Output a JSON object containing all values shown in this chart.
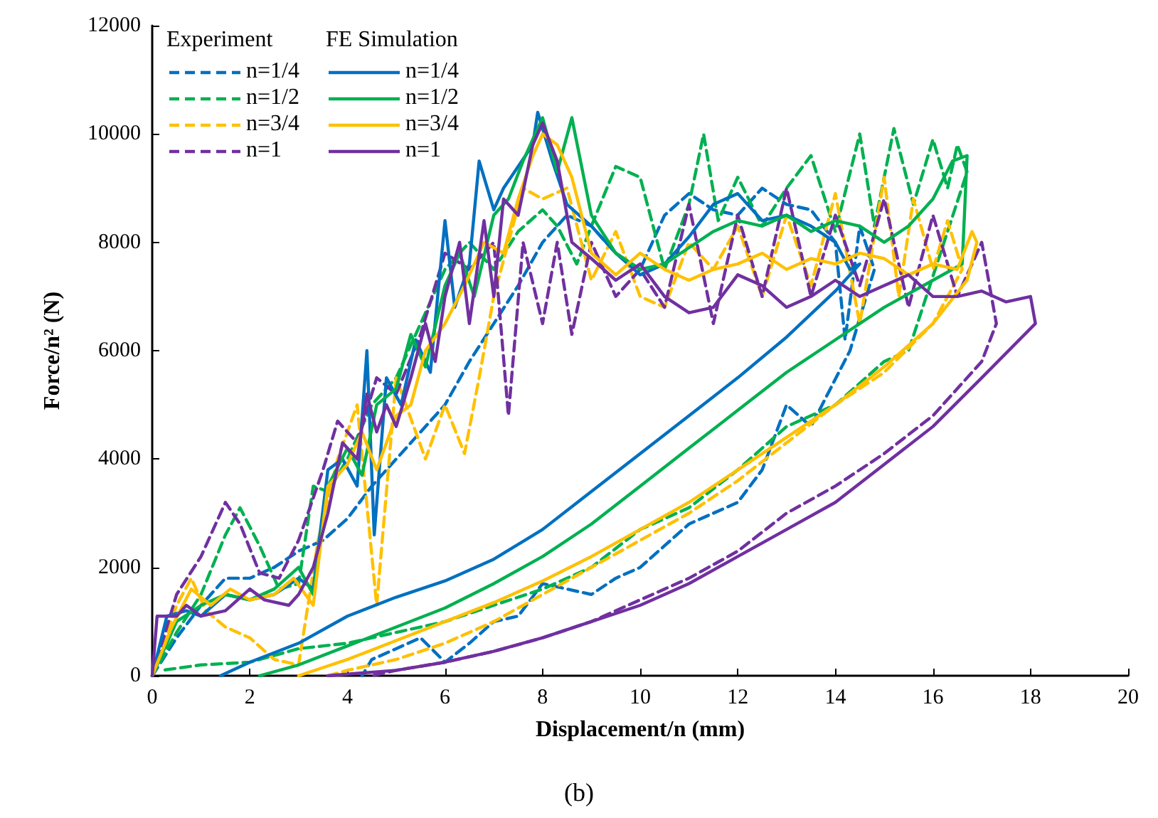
{
  "chart_data": {
    "type": "line",
    "xlabel": "Displacement/n (mm)",
    "ylabel": "Force/n² (N)",
    "annotations": [
      "Experiment",
      "FE Simulation",
      "(b)"
    ],
    "xlim": [
      0,
      20
    ],
    "xticks": [
      0,
      2,
      4,
      6,
      8,
      10,
      12,
      14,
      16,
      18,
      20
    ],
    "ylim": [
      0,
      12000
    ],
    "yticks": [
      0,
      2000,
      4000,
      6000,
      8000,
      10000,
      12000
    ],
    "grid": false,
    "legend": "top left",
    "marker": "none",
    "series": [
      {
        "name": "n=1/4",
        "color": "#0070c0",
        "line_style": "dashed",
        "x": [
          0,
          0.5,
          1,
          1.5,
          2,
          2.5,
          3,
          3.5,
          4,
          4.5,
          5,
          5.5,
          6,
          6.5,
          7,
          7.5,
          8,
          8.5,
          9,
          9.5,
          10,
          10.5,
          11,
          11.5,
          12,
          12.5,
          13,
          13.5,
          14,
          14.2,
          14.5,
          14.8,
          14.3,
          13.5,
          13,
          12.5,
          12,
          11,
          10.5,
          10,
          9.5,
          9,
          8,
          7.5,
          7,
          6.5,
          6,
          5.5,
          5,
          4.5,
          4.3
        ],
        "values": [
          0,
          700,
          1300,
          1800,
          1800,
          2000,
          2300,
          2500,
          2900,
          3500,
          4000,
          4500,
          5000,
          5800,
          6500,
          7200,
          8000,
          8500,
          8300,
          7800,
          7500,
          8500,
          8900,
          8600,
          8500,
          9000,
          8700,
          8600,
          8000,
          6200,
          8300,
          7500,
          6000,
          4600,
          5000,
          3800,
          3200,
          2800,
          2400,
          2000,
          1800,
          1500,
          1700,
          1100,
          1000,
          600,
          250,
          700,
          500,
          300,
          0
        ]
      },
      {
        "name": "n=1/2",
        "color": "#00b050",
        "line_style": "dashed",
        "x": [
          0,
          0.5,
          1,
          1.5,
          1.8,
          2.2,
          2.6,
          3,
          3.3,
          3.6,
          4,
          4.5,
          5,
          5.5,
          6,
          6.5,
          7,
          7.5,
          8,
          8.3,
          8.7,
          9,
          9.5,
          10,
          10.5,
          11,
          11.3,
          11.6,
          12,
          12.5,
          13,
          13.5,
          14,
          14.5,
          14.8,
          15.2,
          15.6,
          16,
          16.3,
          16.5,
          16.7,
          15.5,
          15,
          14,
          13,
          12,
          11,
          10,
          9,
          8,
          7,
          6,
          5,
          4,
          3,
          2,
          1,
          0.2
        ],
        "values": [
          0,
          800,
          1500,
          2600,
          3100,
          2400,
          1600,
          1700,
          3500,
          3400,
          4000,
          5000,
          5500,
          6500,
          7500,
          8000,
          7500,
          8200,
          8600,
          8300,
          7600,
          8300,
          9400,
          9200,
          7500,
          8700,
          10000,
          8400,
          9200,
          8300,
          9000,
          9600,
          8200,
          10000,
          8300,
          10100,
          8700,
          9900,
          9000,
          9800,
          9300,
          6000,
          5800,
          5000,
          4600,
          3800,
          3100,
          2700,
          2000,
          1600,
          1300,
          1000,
          800,
          600,
          500,
          250,
          200,
          100
        ]
      },
      {
        "name": "n=3/4",
        "color": "#ffc000",
        "line_style": "dashed",
        "x": [
          0,
          0.5,
          0.8,
          1.1,
          1.5,
          2,
          2.5,
          3,
          3.4,
          3.8,
          4.2,
          4.6,
          5,
          5.6,
          6,
          6.4,
          6.7,
          7,
          7.3,
          7.6,
          8,
          8.5,
          9,
          9.5,
          10,
          10.5,
          11,
          11.5,
          12,
          12.5,
          13,
          13.5,
          14,
          14.5,
          15,
          15.3,
          15.6,
          16,
          16.3,
          16.6,
          16,
          15,
          14,
          13,
          12,
          11,
          10,
          9,
          8,
          7,
          6,
          5,
          4,
          3.6
        ],
        "values": [
          0,
          1300,
          1800,
          1200,
          900,
          700,
          300,
          200,
          2500,
          4000,
          5000,
          1300,
          5500,
          4000,
          5000,
          4100,
          5500,
          7000,
          8000,
          9000,
          8800,
          9000,
          7300,
          8200,
          7000,
          6800,
          8000,
          7500,
          8300,
          7000,
          8500,
          7200,
          8900,
          6500,
          9200,
          7000,
          8800,
          7500,
          8400,
          7500,
          6500,
          5600,
          5000,
          4300,
          3600,
          3000,
          2500,
          2000,
          1500,
          1000,
          600,
          300,
          100,
          0
        ]
      },
      {
        "name": "n=1",
        "color": "#7030a0",
        "line_style": "dashed",
        "x": [
          0,
          0.5,
          1,
          1.5,
          1.8,
          2.2,
          2.6,
          3,
          3.5,
          3.8,
          4.2,
          4.6,
          5,
          5.5,
          6,
          6.5,
          7,
          7.3,
          7.6,
          8,
          8.3,
          8.6,
          9,
          9.5,
          10,
          10.5,
          11,
          11.5,
          12,
          12.5,
          13,
          13.5,
          14,
          14.5,
          15,
          15.5,
          16,
          16.5,
          17,
          17.3,
          17,
          16,
          15,
          14,
          13,
          12,
          11,
          10,
          9,
          8,
          7,
          6,
          5,
          4.5
        ],
        "values": [
          0,
          1500,
          2200,
          3200,
          2800,
          1900,
          1800,
          2500,
          3800,
          4700,
          4300,
          5500,
          5200,
          6300,
          7800,
          7500,
          8000,
          4800,
          8000,
          6500,
          8000,
          6300,
          8000,
          7000,
          7500,
          6800,
          8700,
          6500,
          8500,
          7000,
          9000,
          7000,
          8500,
          7200,
          8800,
          6800,
          8500,
          7000,
          8000,
          6500,
          5800,
          4800,
          4100,
          3500,
          3000,
          2300,
          1800,
          1400,
          1000,
          700,
          450,
          250,
          100,
          0
        ]
      },
      {
        "name": "n=1/4",
        "color": "#0070c0",
        "line_style": "solid",
        "x": [
          0,
          0.3,
          0.7,
          1,
          1.5,
          2,
          2.5,
          3,
          3.3,
          3.6,
          3.9,
          4.2,
          4.4,
          4.55,
          4.8,
          5.1,
          5.4,
          5.7,
          6,
          6.2,
          6.5,
          6.7,
          7,
          7.2,
          7.5,
          7.8,
          7.9,
          8.2,
          8.5,
          9,
          9.5,
          10,
          10.5,
          11,
          11.5,
          12,
          12.5,
          13,
          13.5,
          14,
          14.3,
          14.5,
          14,
          13,
          12,
          11,
          10,
          9,
          8,
          7,
          6,
          5,
          4,
          3,
          2,
          1.4
        ],
        "values": [
          0,
          1100,
          1200,
          1100,
          1500,
          1400,
          1500,
          1800,
          1600,
          3800,
          4000,
          3500,
          6000,
          2600,
          5500,
          5000,
          6200,
          5600,
          8400,
          6800,
          7600,
          9500,
          8600,
          9000,
          9400,
          9800,
          10400,
          9500,
          8700,
          8300,
          7800,
          7400,
          7600,
          8100,
          8700,
          8900,
          8400,
          8500,
          8300,
          8000,
          7500,
          7600,
          7100,
          6250,
          5500,
          4800,
          4100,
          3400,
          2700,
          2150,
          1750,
          1450,
          1100,
          600,
          250,
          0
        ]
      },
      {
        "name": "n=1/2",
        "color": "#00b050",
        "line_style": "solid",
        "x": [
          0,
          0.5,
          1,
          1.5,
          2,
          2.5,
          3,
          3.3,
          3.6,
          4,
          4.3,
          4.6,
          5,
          5.3,
          5.6,
          6,
          6.3,
          6.6,
          7,
          7.3,
          7.6,
          8,
          8.3,
          8.6,
          9,
          9.5,
          10,
          10.5,
          11,
          11.5,
          12,
          12.5,
          13,
          13.5,
          14,
          14.5,
          15,
          15.5,
          16,
          16.4,
          16.7,
          16.6,
          16,
          15,
          14,
          13,
          12,
          11,
          10,
          9,
          8,
          7,
          6,
          5,
          4,
          3,
          2.2
        ],
        "values": [
          0,
          1000,
          1300,
          1500,
          1400,
          1600,
          2000,
          1500,
          3500,
          4200,
          3700,
          5000,
          5300,
          6300,
          5700,
          7200,
          7800,
          7000,
          8500,
          8800,
          9500,
          10300,
          9300,
          10300,
          8500,
          7800,
          7500,
          7600,
          7900,
          8200,
          8400,
          8300,
          8500,
          8200,
          8400,
          8300,
          8000,
          8300,
          8800,
          9500,
          9600,
          7600,
          7300,
          6800,
          6200,
          5600,
          4900,
          4200,
          3500,
          2800,
          2200,
          1700,
          1250,
          900,
          550,
          200,
          0
        ]
      },
      {
        "name": "n=3/4",
        "color": "#ffc000",
        "line_style": "solid",
        "x": [
          0,
          0.4,
          0.8,
          1.2,
          1.6,
          2,
          2.5,
          2.9,
          3.3,
          3.6,
          4,
          4.3,
          4.6,
          5,
          5.3,
          5.6,
          6,
          6.4,
          6.8,
          7.2,
          7.5,
          7.8,
          8,
          8.3,
          8.6,
          9,
          9.5,
          10,
          10.5,
          11,
          11.5,
          12,
          12.5,
          13,
          13.5,
          14,
          14.5,
          15,
          15.5,
          16,
          16.5,
          16.8,
          16.9,
          16.7,
          16,
          15,
          14,
          13,
          12,
          11,
          10,
          9,
          8,
          7,
          6,
          5,
          4,
          3
        ],
        "values": [
          0,
          900,
          1600,
          1300,
          1600,
          1400,
          1500,
          1800,
          1300,
          3500,
          3900,
          4500,
          3800,
          4800,
          5000,
          6000,
          6500,
          7200,
          8000,
          7800,
          8800,
          9600,
          10000,
          9800,
          9200,
          7800,
          7400,
          7800,
          7500,
          7300,
          7500,
          7600,
          7800,
          7500,
          7700,
          7600,
          7800,
          7700,
          7400,
          7600,
          7500,
          8200,
          8000,
          7300,
          6500,
          5700,
          5000,
          4400,
          3800,
          3200,
          2700,
          2200,
          1750,
          1350,
          1000,
          650,
          300,
          0
        ]
      },
      {
        "name": "n=1",
        "color": "#7030a0",
        "line_style": "solid",
        "x": [
          0,
          0.1,
          0.5,
          0.7,
          1,
          1.5,
          2,
          2.3,
          2.8,
          3,
          3.3,
          3.6,
          3.9,
          4.2,
          4.4,
          4.6,
          4.8,
          5,
          5.3,
          5.6,
          5.8,
          6,
          6.3,
          6.5,
          6.8,
          7,
          7.2,
          7.5,
          7.8,
          8,
          8.3,
          8.6,
          9,
          9.5,
          10,
          10.5,
          11,
          11.5,
          12,
          12.5,
          13,
          13.5,
          14,
          14.5,
          15,
          15.5,
          16,
          16.5,
          17,
          17.5,
          18,
          18.1,
          17,
          16,
          15,
          14,
          13,
          12,
          11,
          10,
          9,
          8,
          7,
          6,
          5,
          4,
          3.6
        ],
        "values": [
          0,
          1100,
          1100,
          1300,
          1100,
          1200,
          1600,
          1400,
          1300,
          1500,
          2000,
          3000,
          4300,
          4000,
          5200,
          4500,
          5000,
          4600,
          5500,
          6500,
          5800,
          7000,
          8000,
          6500,
          8400,
          7000,
          8800,
          8500,
          9800,
          10200,
          9500,
          8000,
          7700,
          7300,
          7600,
          7000,
          6700,
          6800,
          7400,
          7200,
          6800,
          7000,
          7300,
          7000,
          7200,
          7400,
          7000,
          7000,
          7100,
          6900,
          7000,
          6500,
          5500,
          4600,
          3900,
          3200,
          2700,
          2200,
          1700,
          1300,
          1000,
          700,
          450,
          250,
          100,
          30,
          0
        ]
      }
    ]
  }
}
